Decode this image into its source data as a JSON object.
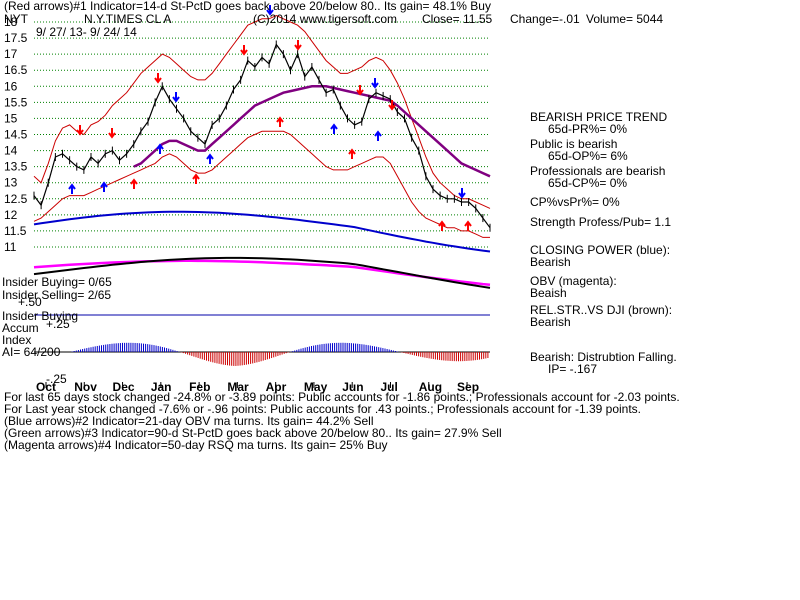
{
  "header": {
    "line1": "(Red arrows)#1 Indicator=14-d St-PctD goes back above 20/below 80.. Its gain= 48.1% Buy",
    "ticker": "NYT",
    "company": "N.Y.TIMES CL A",
    "copyright": "(C)2014 www.tigersoft.com",
    "close": "Close= 11.55",
    "change": "Change=-.01",
    "volume": "Volume= 5044",
    "date_range": "9/ 27/ 13- 9/ 24/ 14"
  },
  "left_labels": {
    "insider_buying": "Insider Buying= 0/65",
    "insider_selling": "Insider Selling= 2/65",
    "ia_top": "+.50",
    "panel_title": "Insider Buying",
    "accum": "Accum",
    "accum_top": "+.25",
    "index": "Index",
    "ai": "AI= 64/200",
    "accum_bottom": "-.25"
  },
  "right_panel": {
    "trend_title": "BEARISH PRICE TREND",
    "pr": "65d-PR%= 0%",
    "public": "Public is bearish",
    "op": "65d-OP%= 6%",
    "professionals": "Professionals are bearish",
    "cp": "65d-CP%= 0%",
    "cpvs": "CP%vsPr%=  0%",
    "strength": "Strength Profess/Pub= 1.1",
    "closing_power_title": "CLOSING POWER (blue):",
    "closing_power_state": "Bearish",
    "obv_title": "OBV (magenta):",
    "obv_state": "Beaish",
    "relstr_title": "REL.STR..VS DJI (brown):",
    "relstr_state": "Bearish",
    "dist_title": "Bearish: Distrubtion Falling.",
    "ip": "IP= -.167"
  },
  "footer": {
    "line1": "For last 65 days stock changed -24.8% or -3.89 points:  Public accounts for -1.86 points.;  Professionals account for -2.03 points.",
    "line2": "For Last year stock changed -7.6% or -.96 points:  Public accounts for  .43 points.;  Professionals account for -1.39 points.",
    "line3": "(Blue arrows)#2 Indicator=21-day OBV ma turns. Its gain= 44.2% Sell",
    "line4": "(Green arrows)#3 Indicator=90-d St-PctD goes back above 20/below 80.. Its gain= 27.9% Sell",
    "line5": "(Magenta arrows)#4 Indicator=50-day RSQ ma turns. Its gain= 25% Buy"
  },
  "colors": {
    "price": "#000000",
    "bands": "#cc0000",
    "ma": "#800080",
    "closing_power": "#0000cc",
    "obv": "#ff00ff",
    "grid": "#008000",
    "accum_pos": "#0000cc",
    "accum_neg": "#cc0000",
    "arrow_red": "#ff0000",
    "arrow_blue": "#0000ff"
  },
  "chart_data": {
    "type": "line",
    "ylim": [
      11,
      18
    ],
    "y_ticks": [
      "18",
      "17.5",
      "17",
      "16.5",
      "16",
      "15.5",
      "15",
      "14.5",
      "14",
      "13.5",
      "13",
      "12.5",
      "12",
      "11.5",
      "11"
    ],
    "x_ticks": [
      "Oct",
      "Nov",
      "Dec",
      "Jan",
      "Feb",
      "Mar",
      "Apr",
      "May",
      "Jun",
      "Jul",
      "Aug",
      "Sep"
    ],
    "price": [
      12.6,
      12.3,
      13.0,
      13.8,
      13.9,
      13.7,
      13.5,
      13.4,
      13.8,
      13.6,
      13.9,
      14.0,
      13.7,
      13.9,
      14.2,
      14.6,
      14.9,
      15.5,
      16.0,
      15.6,
      15.3,
      15.0,
      14.6,
      14.4,
      14.2,
      14.8,
      15.0,
      15.4,
      15.9,
      16.2,
      16.8,
      16.6,
      16.9,
      16.7,
      17.3,
      17.0,
      16.5,
      17.0,
      16.3,
      16.6,
      16.2,
      15.8,
      15.9,
      15.4,
      15.0,
      14.8,
      14.9,
      15.6,
      15.8,
      15.7,
      15.6,
      15.2,
      15.0,
      14.4,
      14.0,
      13.2,
      12.8,
      12.6,
      12.5,
      12.5,
      12.4,
      12.4,
      12.2,
      11.9,
      11.6
    ],
    "upper_band": [
      13.2,
      13.0,
      13.6,
      14.3,
      14.7,
      14.8,
      14.6,
      14.5,
      14.8,
      14.9,
      15.1,
      15.4,
      15.6,
      15.8,
      16.1,
      16.4,
      16.6,
      16.8,
      17.0,
      16.9,
      16.7,
      16.5,
      16.3,
      16.2,
      16.2,
      16.4,
      16.7,
      17.0,
      17.3,
      17.6,
      17.9,
      18.0,
      18.1,
      18.1,
      18.2,
      18.1,
      18.0,
      17.9,
      17.7,
      17.4,
      17.1,
      16.8,
      16.6,
      16.4,
      16.4,
      16.5,
      16.6,
      16.8,
      16.9,
      16.8,
      16.5,
      16.1,
      15.6,
      15.0,
      14.4,
      13.8,
      13.3,
      13.0,
      12.8,
      12.6,
      12.5,
      12.5,
      12.4,
      12.3,
      12.2
    ],
    "ma": [
      null,
      null,
      null,
      null,
      null,
      null,
      null,
      null,
      null,
      null,
      null,
      null,
      null,
      null,
      13.5,
      13.6,
      13.8,
      14.0,
      14.2,
      14.3,
      14.3,
      14.2,
      14.1,
      14.0,
      14.0,
      14.2,
      14.4,
      14.6,
      14.8,
      15.0,
      15.2,
      15.4,
      15.5,
      15.6,
      15.7,
      15.8,
      15.85,
      15.9,
      15.95,
      16.0,
      16.0,
      16.0,
      15.95,
      15.9,
      15.85,
      15.8,
      15.75,
      15.7,
      15.65,
      15.6,
      15.55,
      15.4,
      15.2,
      15.0,
      14.8,
      14.6,
      14.4,
      14.2,
      14.0,
      13.8,
      13.6,
      13.5,
      13.4,
      13.3,
      13.2
    ],
    "lower_band": [
      11.8,
      11.9,
      12.1,
      12.3,
      12.5,
      12.6,
      12.6,
      12.6,
      12.7,
      12.8,
      12.9,
      13.0,
      13.1,
      13.2,
      13.3,
      13.4,
      13.5,
      13.6,
      13.8,
      13.9,
      13.8,
      13.6,
      13.4,
      13.3,
      13.3,
      13.4,
      13.6,
      13.8,
      14.0,
      14.2,
      14.4,
      14.5,
      14.6,
      14.6,
      14.6,
      14.6,
      14.5,
      14.3,
      14.1,
      13.9,
      13.7,
      13.5,
      13.4,
      13.4,
      13.4,
      13.5,
      13.6,
      13.7,
      13.8,
      13.8,
      13.6,
      13.2,
      12.8,
      12.4,
      12.1,
      11.9,
      11.8,
      11.7,
      11.6,
      11.6,
      11.5,
      11.5,
      11.4,
      11.3,
      11.3
    ]
  }
}
